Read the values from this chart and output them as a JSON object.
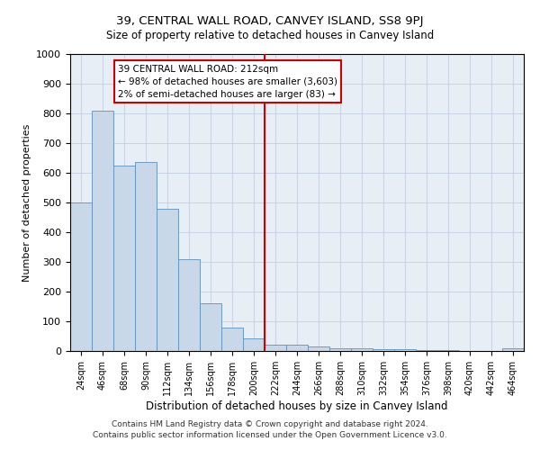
{
  "title": "39, CENTRAL WALL ROAD, CANVEY ISLAND, SS8 9PJ",
  "subtitle": "Size of property relative to detached houses in Canvey Island",
  "xlabel": "Distribution of detached houses by size in Canvey Island",
  "ylabel": "Number of detached properties",
  "footer_line1": "Contains HM Land Registry data © Crown copyright and database right 2024.",
  "footer_line2": "Contains public sector information licensed under the Open Government Licence v3.0.",
  "annotation_line1": "39 CENTRAL WALL ROAD: 212sqm",
  "annotation_line2": "← 98% of detached houses are smaller (3,603)",
  "annotation_line3": "2% of semi-detached houses are larger (83) →",
  "vline_index": 8.5,
  "bar_color": "#c8d8e8",
  "bar_edge_color": "#6090b8",
  "vline_color": "#cc0000",
  "grid_color": "#c8d4e4",
  "background_color": "#e8eef6",
  "categories": [
    "24sqm",
    "46sqm",
    "68sqm",
    "90sqm",
    "112sqm",
    "134sqm",
    "156sqm",
    "178sqm",
    "200sqm",
    "222sqm",
    "244sqm",
    "266sqm",
    "288sqm",
    "310sqm",
    "332sqm",
    "354sqm",
    "376sqm",
    "398sqm",
    "420sqm",
    "442sqm",
    "464sqm"
  ],
  "values": [
    500,
    808,
    625,
    635,
    480,
    310,
    160,
    80,
    42,
    22,
    22,
    15,
    10,
    10,
    5,
    5,
    3,
    2,
    0,
    0,
    8
  ],
  "ylim": [
    0,
    1000
  ],
  "yticks": [
    0,
    100,
    200,
    300,
    400,
    500,
    600,
    700,
    800,
    900,
    1000
  ]
}
